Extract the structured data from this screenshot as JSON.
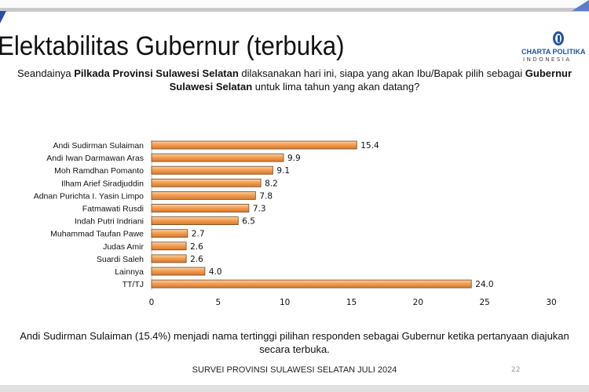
{
  "title": "Elektabilitas Gubernur (terbuka)",
  "logo": {
    "text": "CHARTA POLITIKA",
    "sub": "INDONESIA"
  },
  "question": {
    "p1": "Seandainya ",
    "b1": "Pilkada Provinsi Sulawesi Selatan",
    "p2": " dilaksanakan hari ini, siapa yang akan Ibu/Bapak pilih sebagai ",
    "b2": "Gubernur Sulawesi Selatan",
    "p3": " untuk lima tahun yang akan datang?"
  },
  "chart_data": {
    "type": "bar",
    "orientation": "horizontal",
    "categories": [
      "Andi Sudirman Sulaiman",
      "Andi Iwan Darmawan Aras",
      "Moh Ramdhan Pomanto",
      "Ilham Arief Siradjuddin",
      "Adnan Purichta I. Yasin Limpo",
      "Fatmawati Rusdi",
      "Indah Putri Indriani",
      "Muhammad Taufan Pawe",
      "Judas Amir",
      "Suardi Saleh",
      "Lainnya",
      "TT/TJ"
    ],
    "values": [
      15.4,
      9.9,
      9.1,
      8.2,
      7.8,
      7.3,
      6.5,
      2.7,
      2.6,
      2.6,
      4.0,
      24.0
    ],
    "value_labels": [
      "15.4",
      "9.9",
      "9.1",
      "8.2",
      "7.8",
      "7.3",
      "6.5",
      "2.7",
      "2.6",
      "2.6",
      "4.0",
      "24.0"
    ],
    "xlim": [
      0,
      30
    ],
    "xticks": [
      "0",
      "5",
      "10",
      "15",
      "20",
      "25",
      "30"
    ],
    "grid": false,
    "bar_color": "#f0a050"
  },
  "footnote": "Andi Sudirman Sulaiman (15.4%) menjadi nama tertinggi pilihan responden sebagai Gubernur ketika pertanyaan diajukan secara terbuka.",
  "source": "SURVEI PROVINSI SULAWESI SELATAN JULI 2024",
  "page_number": "22"
}
